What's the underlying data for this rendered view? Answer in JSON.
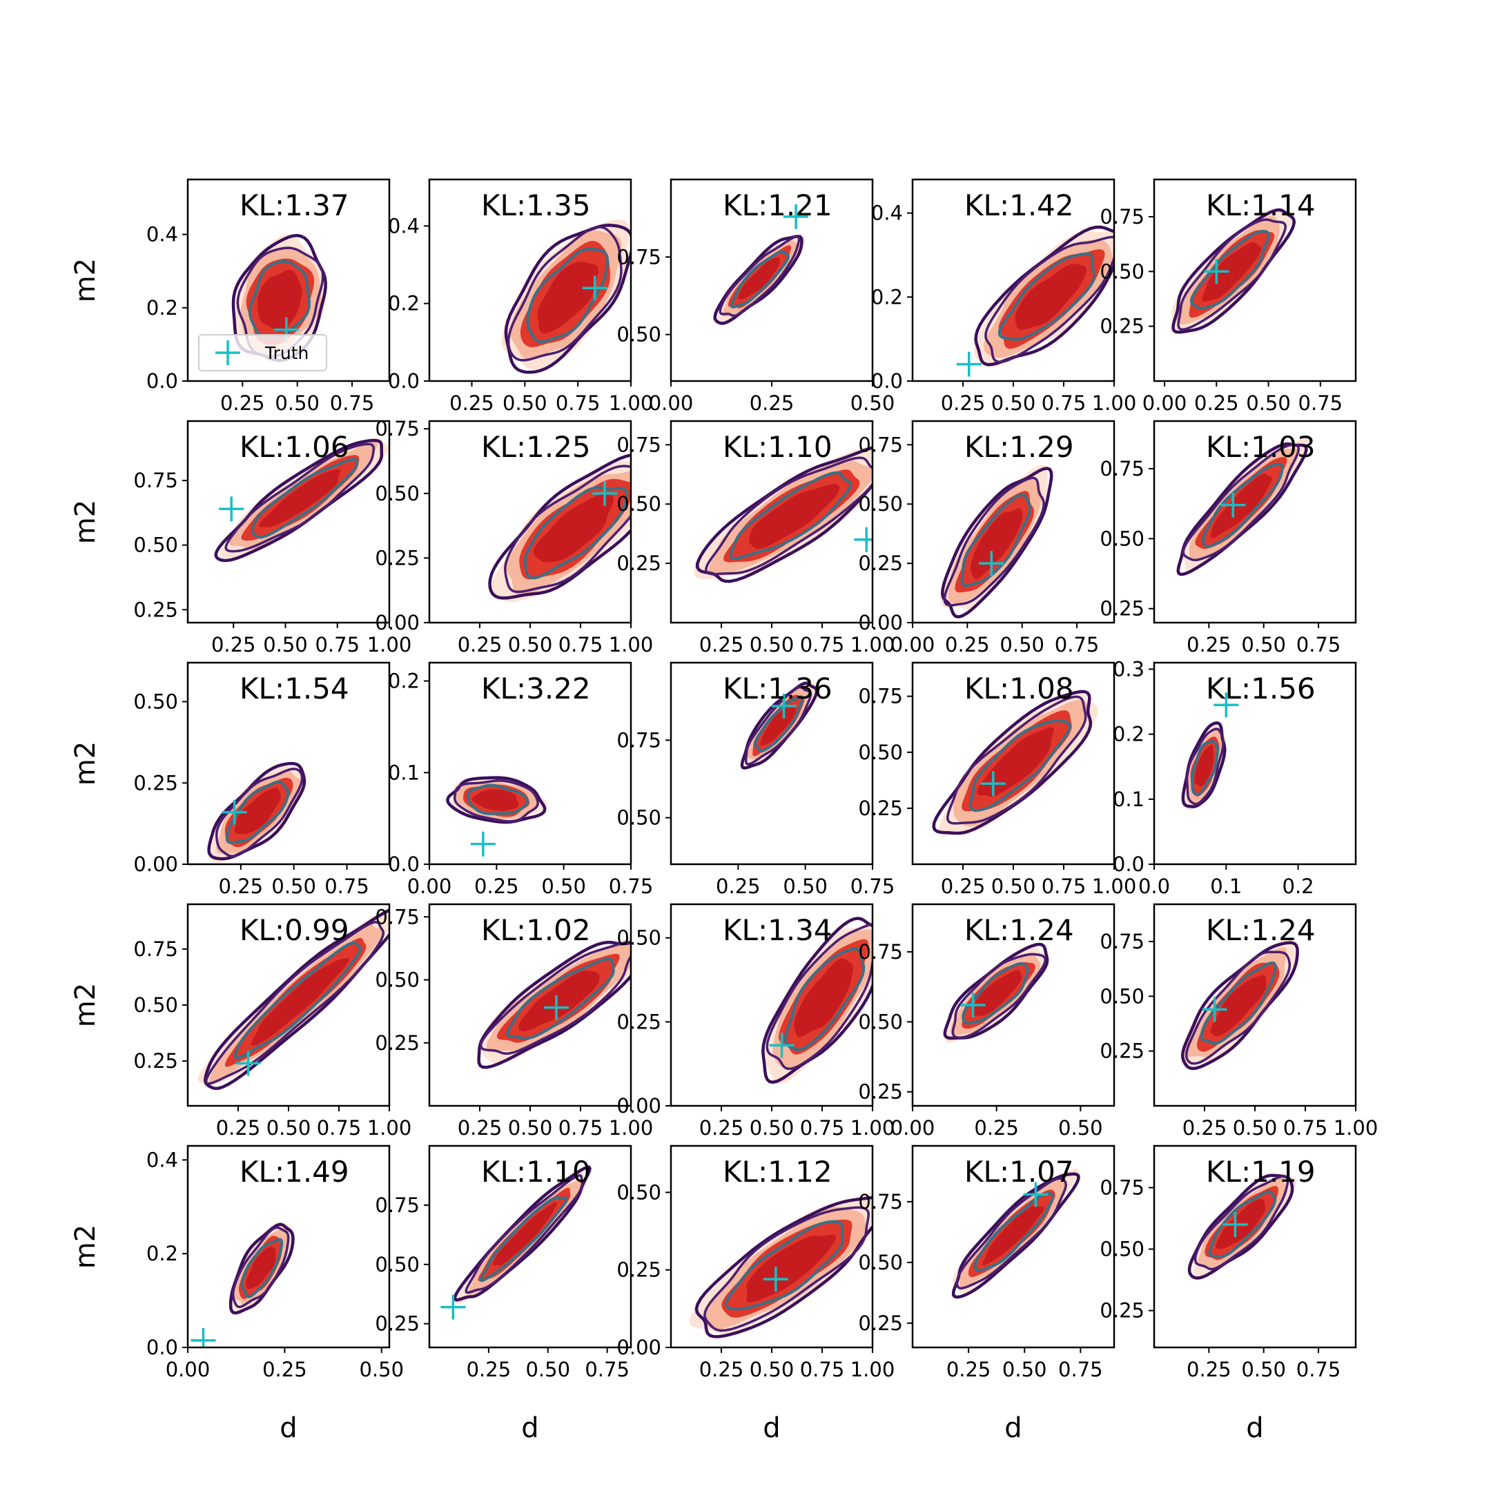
{
  "figure": {
    "xlabel": "d",
    "ylabel": "m2",
    "legend_label": "Truth"
  },
  "colors": {
    "fill_outer": "#fde0d2",
    "fill_mid": "#f6b49b",
    "fill_inner": "#e0382c",
    "fill_core": "#c71c1f",
    "contour_outer": "#3b0f5a",
    "contour_mid": "#4b1f6f",
    "contour_inner": "#3a7087",
    "truth_marker": "#17bfc4",
    "axis": "#000000"
  },
  "chart_data": [
    {
      "type": "scatter",
      "kl": "KL:1.37",
      "xlim": [
        0.0,
        0.92
      ],
      "ylim": [
        0.0,
        0.55
      ],
      "xticks": [
        "0.25",
        "0.50",
        "0.75"
      ],
      "yticks": [
        "0.0",
        "0.2",
        "0.4"
      ],
      "truth": [
        0.45,
        0.14
      ],
      "center": [
        0.42,
        0.22
      ],
      "spread": [
        0.2,
        0.14
      ],
      "angle": 72,
      "legend": true
    },
    {
      "type": "scatter",
      "kl": "KL:1.35",
      "xlim": [
        0.05,
        1.0
      ],
      "ylim": [
        0.0,
        0.52
      ],
      "xticks": [
        "0.25",
        "0.50",
        "0.75",
        "1.00"
      ],
      "yticks": [
        "0.0",
        "0.2",
        "0.4"
      ],
      "truth": [
        0.83,
        0.24
      ],
      "center": [
        0.7,
        0.22
      ],
      "spread": [
        0.28,
        0.13
      ],
      "angle": 52
    },
    {
      "type": "scatter",
      "kl": "KL:1.21",
      "xlim": [
        0.0,
        0.5
      ],
      "ylim": [
        0.35,
        1.0
      ],
      "xticks": [
        "0.00",
        "0.25",
        "0.50"
      ],
      "yticks": [
        "0.50",
        "0.75"
      ],
      "truth": [
        0.31,
        0.88
      ],
      "center": [
        0.22,
        0.68
      ],
      "spread": [
        0.19,
        0.05
      ],
      "angle": 45
    },
    {
      "type": "scatter",
      "kl": "KL:1.42",
      "xlim": [
        0.0,
        1.0
      ],
      "ylim": [
        0.0,
        0.48
      ],
      "xticks": [
        "0.25",
        "0.50",
        "0.75",
        "1.00"
      ],
      "yticks": [
        "0.0",
        "0.2",
        "0.4"
      ],
      "truth": [
        0.28,
        0.04
      ],
      "center": [
        0.68,
        0.2
      ],
      "spread": [
        0.3,
        0.11
      ],
      "angle": 42
    },
    {
      "type": "scatter",
      "kl": "KL:1.14",
      "xlim": [
        -0.05,
        0.92
      ],
      "ylim": [
        0.0,
        0.92
      ],
      "xticks": [
        "0.00",
        "0.25",
        "0.50",
        "0.75"
      ],
      "yticks": [
        "0.25",
        "0.50",
        "0.75"
      ],
      "truth": [
        0.25,
        0.5
      ],
      "center": [
        0.32,
        0.5
      ],
      "spread": [
        0.26,
        0.08
      ],
      "angle": 46
    },
    {
      "type": "scatter",
      "kl": "KL:1.06",
      "xlim": [
        0.03,
        1.0
      ],
      "ylim": [
        0.2,
        0.98
      ],
      "xticks": [
        "0.25",
        "0.50",
        "0.75",
        "1.00"
      ],
      "yticks": [
        "0.25",
        "0.50",
        "0.75"
      ],
      "truth": [
        0.24,
        0.64
      ],
      "center": [
        0.58,
        0.68
      ],
      "spread": [
        0.32,
        0.07
      ],
      "angle": 35
    },
    {
      "type": "scatter",
      "kl": "KL:1.25",
      "xlim": [
        0.0,
        1.0
      ],
      "ylim": [
        0.0,
        0.78
      ],
      "xticks": [
        "0.25",
        "0.50",
        "0.75",
        "1.00"
      ],
      "yticks": [
        "0.00",
        "0.25",
        "0.50",
        "0.75"
      ],
      "truth": [
        0.87,
        0.5
      ],
      "center": [
        0.72,
        0.36
      ],
      "spread": [
        0.32,
        0.12
      ],
      "angle": 40
    },
    {
      "type": "scatter",
      "kl": "KL:1.10",
      "xlim": [
        0.0,
        1.0
      ],
      "ylim": [
        0.0,
        0.85
      ],
      "xticks": [
        "0.25",
        "0.50",
        "0.75",
        "1.00"
      ],
      "yticks": [
        "0.25",
        "0.50",
        "0.75"
      ],
      "truth": [
        0.97,
        0.35
      ],
      "center": [
        0.6,
        0.45
      ],
      "spread": [
        0.35,
        0.1
      ],
      "angle": 33
    },
    {
      "type": "scatter",
      "kl": "KL:1.29",
      "xlim": [
        0.0,
        0.92
      ],
      "ylim": [
        0.0,
        0.85
      ],
      "xticks": [
        "0.00",
        "0.25",
        "0.50",
        "0.75"
      ],
      "yticks": [
        "0.00",
        "0.25",
        "0.50",
        "0.75"
      ],
      "truth": [
        0.36,
        0.25
      ],
      "center": [
        0.38,
        0.34
      ],
      "spread": [
        0.27,
        0.09
      ],
      "angle": 55
    },
    {
      "type": "scatter",
      "kl": "KL:1.03",
      "xlim": [
        0.0,
        0.92
      ],
      "ylim": [
        0.2,
        0.92
      ],
      "xticks": [
        "0.25",
        "0.50",
        "0.75"
      ],
      "yticks": [
        "0.25",
        "0.50",
        "0.75"
      ],
      "truth": [
        0.36,
        0.62
      ],
      "center": [
        0.4,
        0.62
      ],
      "spread": [
        0.28,
        0.07
      ],
      "angle": 46
    },
    {
      "type": "scatter",
      "kl": "KL:1.54",
      "xlim": [
        0.0,
        0.95
      ],
      "ylim": [
        0.0,
        0.62
      ],
      "xticks": [
        "0.25",
        "0.50",
        "0.75"
      ],
      "yticks": [
        "0.00",
        "0.25",
        "0.50"
      ],
      "truth": [
        0.22,
        0.16
      ],
      "center": [
        0.33,
        0.16
      ],
      "spread": [
        0.2,
        0.08
      ],
      "angle": 45
    },
    {
      "type": "scatter",
      "kl": "KL:3.22",
      "xlim": [
        0.0,
        0.75
      ],
      "ylim": [
        0.0,
        0.22
      ],
      "xticks": [
        "0.00",
        "0.25",
        "0.50",
        "0.75"
      ],
      "yticks": [
        "0.0",
        "0.1",
        "0.2"
      ],
      "truth": [
        0.2,
        0.022
      ],
      "center": [
        0.25,
        0.07
      ],
      "spread": [
        0.07,
        0.15
      ],
      "angle": 85
    },
    {
      "type": "scatter",
      "kl": "KL:1.36",
      "xlim": [
        0.0,
        0.75
      ],
      "ylim": [
        0.35,
        1.0
      ],
      "xticks": [
        "0.25",
        "0.50",
        "0.75"
      ],
      "yticks": [
        "0.50",
        "0.75"
      ],
      "truth": [
        0.42,
        0.86
      ],
      "center": [
        0.4,
        0.8
      ],
      "spread": [
        0.17,
        0.05
      ],
      "angle": 50
    },
    {
      "type": "scatter",
      "kl": "KL:1.08",
      "xlim": [
        0.0,
        1.0
      ],
      "ylim": [
        0.0,
        0.9
      ],
      "xticks": [
        "0.25",
        "0.50",
        "0.75",
        "1.00"
      ],
      "yticks": [
        "0.25",
        "0.50",
        "0.75"
      ],
      "truth": [
        0.4,
        0.36
      ],
      "center": [
        0.52,
        0.45
      ],
      "spread": [
        0.32,
        0.1
      ],
      "angle": 42
    },
    {
      "type": "scatter",
      "kl": "KL:1.56",
      "xlim": [
        0.0,
        0.28
      ],
      "ylim": [
        0.0,
        0.31
      ],
      "xticks": [
        "0.0",
        "0.1",
        "0.2"
      ],
      "yticks": [
        "0.0",
        "0.1",
        "0.2",
        "0.3"
      ],
      "truth": [
        0.1,
        0.245
      ],
      "center": [
        0.07,
        0.15
      ],
      "spread": [
        0.14,
        0.05
      ],
      "angle": 72
    },
    {
      "type": "scatter",
      "kl": "KL:0.99",
      "xlim": [
        0.0,
        1.0
      ],
      "ylim": [
        0.05,
        0.95
      ],
      "xticks": [
        "0.25",
        "0.50",
        "0.75",
        "1.00"
      ],
      "yticks": [
        "0.25",
        "0.50",
        "0.75"
      ],
      "truth": [
        0.3,
        0.24
      ],
      "center": [
        0.55,
        0.52
      ],
      "spread": [
        0.42,
        0.07
      ],
      "angle": 42
    },
    {
      "type": "scatter",
      "kl": "KL:1.02",
      "xlim": [
        0.0,
        1.0
      ],
      "ylim": [
        0.0,
        0.8
      ],
      "xticks": [
        "0.25",
        "0.50",
        "0.75",
        "1.00"
      ],
      "yticks": [
        "0.25",
        "0.50",
        "0.75"
      ],
      "truth": [
        0.63,
        0.39
      ],
      "center": [
        0.65,
        0.42
      ],
      "spread": [
        0.32,
        0.09
      ],
      "angle": 35
    },
    {
      "type": "scatter",
      "kl": "KL:1.34",
      "xlim": [
        0.0,
        1.0
      ],
      "ylim": [
        0.0,
        0.6
      ],
      "xticks": [
        "0.25",
        "0.50",
        "0.75",
        "1.00"
      ],
      "yticks": [
        "0.00",
        "0.25",
        "0.50"
      ],
      "truth": [
        0.55,
        0.18
      ],
      "center": [
        0.76,
        0.32
      ],
      "spread": [
        0.3,
        0.11
      ],
      "angle": 55
    },
    {
      "type": "scatter",
      "kl": "KL:1.24",
      "xlim": [
        0.0,
        0.6
      ],
      "ylim": [
        0.2,
        0.92
      ],
      "xticks": [
        "0.00",
        "0.25",
        "0.50"
      ],
      "yticks": [
        "0.25",
        "0.50",
        "0.75"
      ],
      "truth": [
        0.18,
        0.56
      ],
      "center": [
        0.25,
        0.6
      ],
      "spread": [
        0.21,
        0.07
      ],
      "angle": 42
    },
    {
      "type": "scatter",
      "kl": "KL:1.24",
      "xlim": [
        0.0,
        1.0
      ],
      "ylim": [
        0.0,
        0.92
      ],
      "xticks": [
        "0.25",
        "0.50",
        "0.75",
        "1.00"
      ],
      "yticks": [
        "0.25",
        "0.50",
        "0.75"
      ],
      "truth": [
        0.3,
        0.44
      ],
      "center": [
        0.42,
        0.46
      ],
      "spread": [
        0.26,
        0.08
      ],
      "angle": 48
    },
    {
      "type": "scatter",
      "kl": "KL:1.49",
      "xlim": [
        0.0,
        0.52
      ],
      "ylim": [
        0.0,
        0.43
      ],
      "xticks": [
        "0.00",
        "0.25",
        "0.50"
      ],
      "yticks": [
        "0.0",
        "0.2",
        "0.4"
      ],
      "truth": [
        0.04,
        0.015
      ],
      "center": [
        0.19,
        0.17
      ],
      "spread": [
        0.16,
        0.06
      ],
      "angle": 58
    },
    {
      "type": "scatter",
      "kl": "KL:1.10",
      "xlim": [
        0.0,
        0.85
      ],
      "ylim": [
        0.15,
        1.0
      ],
      "xticks": [
        "0.25",
        "0.50",
        "0.75"
      ],
      "yticks": [
        "0.25",
        "0.50",
        "0.75"
      ],
      "truth": [
        0.1,
        0.32
      ],
      "center": [
        0.4,
        0.62
      ],
      "spread": [
        0.29,
        0.05
      ],
      "angle": 45
    },
    {
      "type": "scatter",
      "kl": "KL:1.12",
      "xlim": [
        0.0,
        1.0
      ],
      "ylim": [
        0.0,
        0.65
      ],
      "xticks": [
        "0.25",
        "0.50",
        "0.75",
        "1.00"
      ],
      "yticks": [
        "0.00",
        "0.25",
        "0.50"
      ],
      "truth": [
        0.52,
        0.22
      ],
      "center": [
        0.58,
        0.26
      ],
      "spread": [
        0.35,
        0.11
      ],
      "angle": 35
    },
    {
      "type": "scatter",
      "kl": "KL:1.07",
      "xlim": [
        0.0,
        0.9
      ],
      "ylim": [
        0.15,
        0.98
      ],
      "xticks": [
        "0.25",
        "0.50",
        "0.75"
      ],
      "yticks": [
        "0.25",
        "0.50",
        "0.75"
      ],
      "truth": [
        0.55,
        0.78
      ],
      "center": [
        0.45,
        0.62
      ],
      "spread": [
        0.27,
        0.06
      ],
      "angle": 45
    },
    {
      "type": "scatter",
      "kl": "KL:1.19",
      "xlim": [
        0.0,
        0.92
      ],
      "ylim": [
        0.1,
        0.92
      ],
      "xticks": [
        "0.25",
        "0.50",
        "0.75"
      ],
      "yticks": [
        "0.25",
        "0.50",
        "0.75"
      ],
      "truth": [
        0.37,
        0.6
      ],
      "center": [
        0.4,
        0.6
      ],
      "spread": [
        0.22,
        0.07
      ],
      "angle": 45
    }
  ]
}
